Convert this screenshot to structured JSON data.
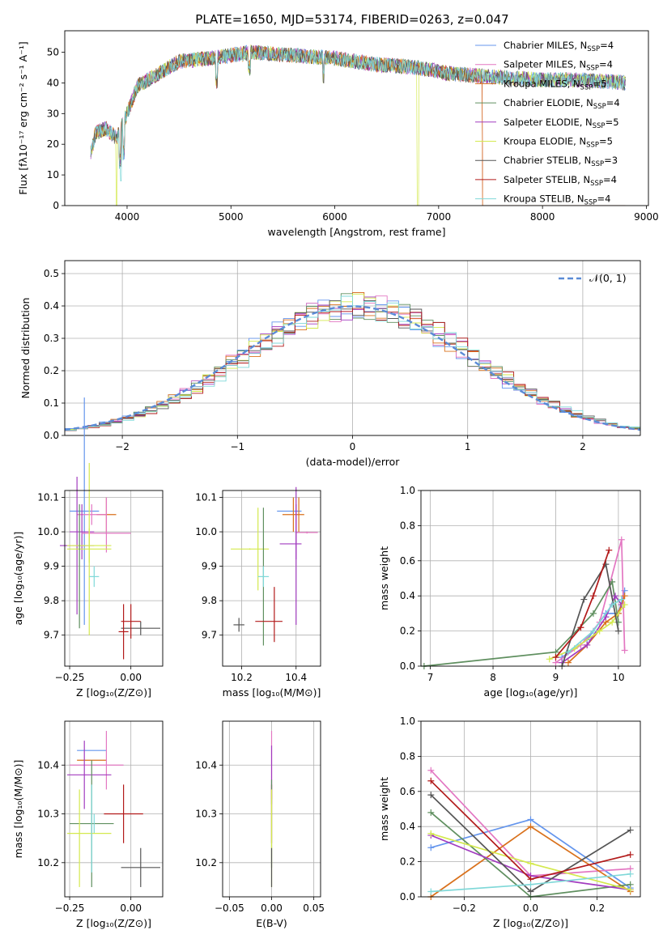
{
  "figure": {
    "title": "PLATE=1650, MJD=53174, FIBERID=0263, z=0.047"
  },
  "colors": [
    "#6495ed",
    "#e377c2",
    "#d9711c",
    "#5f8f5f",
    "#a23cbf",
    "#d4e94e",
    "#555555",
    "#b21a1a",
    "#7fd8d8"
  ],
  "chart_data": [
    {
      "id": "spectrum",
      "type": "line",
      "xlabel": "wavelength [Angstrom, rest frame]",
      "ylabel": "Flux [fλ10⁻¹⁷ erg cm⁻² s⁻¹ A⁻¹]",
      "xlim": [
        3400,
        9020
      ],
      "ylim": [
        0,
        57
      ],
      "xticks": [
        4000,
        5000,
        6000,
        7000,
        8000,
        9000
      ],
      "yticks": [
        0,
        10,
        20,
        30,
        40,
        50
      ],
      "grid": false,
      "legend_placement": "upper right",
      "data_range": [
        3650,
        8800
      ],
      "continuum": {
        "x": [
          3650,
          3700,
          3800,
          3900,
          4000,
          4100,
          4300,
          4500,
          4800,
          5200,
          5600,
          6000,
          6400,
          6800,
          7100,
          7500,
          8000,
          8400,
          8800
        ],
        "y": [
          17,
          24,
          25,
          22,
          30,
          39,
          43,
          47,
          48,
          50,
          49,
          48,
          46,
          45,
          43,
          42,
          41,
          41,
          40
        ]
      },
      "series": [
        {
          "name": "Chabrier MILES, N",
          "sub": "SSP",
          "suffix": "=4"
        },
        {
          "name": "Salpeter MILES, N",
          "sub": "SSP",
          "suffix": "=4"
        },
        {
          "name": "Kroupa MILES, N",
          "sub": "SSP",
          "suffix": "=5"
        },
        {
          "name": "Chabrier ELODIE, N",
          "sub": "SSP",
          "suffix": "=4"
        },
        {
          "name": "Salpeter ELODIE, N",
          "sub": "SSP",
          "suffix": "=5"
        },
        {
          "name": "Kroupa ELODIE, N",
          "sub": "SSP",
          "suffix": "=5"
        },
        {
          "name": "Chabrier STELIB, N",
          "sub": "SSP",
          "suffix": "=3"
        },
        {
          "name": "Salpeter STELIB, N",
          "sub": "SSP",
          "suffix": "=4"
        },
        {
          "name": "Kroupa STELIB, N",
          "sub": "SSP",
          "suffix": "=4"
        }
      ]
    },
    {
      "id": "residuals",
      "type": "histogram",
      "xlabel": "(data-model)/error",
      "ylabel": "Normed distribution",
      "xlim": [
        -2.5,
        2.5
      ],
      "ylim": [
        0,
        0.54
      ],
      "xticks": [
        -2,
        -1,
        0,
        1,
        2
      ],
      "yticks": [
        0.0,
        0.1,
        0.2,
        0.3,
        0.4,
        0.5
      ],
      "grid": true,
      "legend_placement": "upper right",
      "reference": {
        "label": "𝒩(0, 1)",
        "mean": 0,
        "sigma": 1
      },
      "bin_width": 0.1
    },
    {
      "id": "age_vs_Z",
      "type": "errorbar",
      "xlabel": "Z [log₁₀(Z/Z⊙)]",
      "ylabel": "age  [log₁₀(age/yr)]",
      "xlim": [
        -0.27,
        0.13
      ],
      "ylim": [
        9.61,
        10.12
      ],
      "xticks": [
        -0.25,
        0.0
      ],
      "yticks": [
        9.7,
        9.8,
        9.9,
        10.0,
        10.1
      ],
      "grid": true,
      "points": [
        {
          "x": -0.19,
          "xerr": 0.06,
          "y": 10.06,
          "yerr": 0.33
        },
        {
          "x": -0.1,
          "xerr": 0.04,
          "y": 10.05,
          "yerr": 0.05
        },
        {
          "x": -0.16,
          "xerr": 0.06,
          "y": 10.05,
          "yerr": 0.03
        },
        {
          "x": -0.2,
          "xerr": 0.05,
          "y": 10.0,
          "yerr": 0.08
        },
        {
          "x": -0.1,
          "xerr": 0.0,
          "y": 10.02,
          "yerr": 0.08
        },
        {
          "x": -0.22,
          "xerr": 0.07,
          "y": 9.96,
          "yerr": 0.2
        },
        {
          "x": -0.1,
          "xerr": 0.1,
          "y": 9.996,
          "yerr": 0.003
        },
        {
          "x": -0.17,
          "xerr": 0.09,
          "y": 9.96,
          "yerr": 0.05
        },
        {
          "x": -0.17,
          "xerr": 0.09,
          "y": 9.95,
          "yerr": 0.25
        },
        {
          "x": -0.15,
          "xerr": 0.02,
          "y": 9.87,
          "yerr": 0.03
        },
        {
          "x": 0.04,
          "xerr": 0.08,
          "y": 9.72,
          "yerr": 0.02
        },
        {
          "x": 0.0,
          "xerr": 0.04,
          "y": 9.74,
          "yerr": 0.05
        },
        {
          "x": -0.03,
          "xerr": 0.02,
          "y": 9.71,
          "yerr": 0.08
        },
        {
          "x": -0.21,
          "xerr": 0.0,
          "y": 9.9,
          "yerr": 0.18
        }
      ],
      "point_colors": [
        0,
        2,
        1,
        4,
        1,
        4,
        1,
        5,
        5,
        8,
        6,
        7,
        7,
        3
      ]
    },
    {
      "id": "age_vs_mass",
      "type": "errorbar",
      "xlabel": "mass [log₁₀(M/M⊙)]",
      "ylabel": "",
      "xlim": [
        10.13,
        10.49
      ],
      "ylim": [
        9.61,
        10.12
      ],
      "xticks": [
        10.2,
        10.4
      ],
      "yticks": [
        9.7,
        9.8,
        9.9,
        10.0,
        10.1
      ],
      "grid": true,
      "points": [
        {
          "x": 10.375,
          "xerr": 0.045,
          "y": 10.06,
          "yerr": 0.0
        },
        {
          "x": 10.39,
          "xerr": 0.04,
          "y": 10.05,
          "yerr": 0.05
        },
        {
          "x": 10.41,
          "xerr": 0.0,
          "y": 10.05,
          "yerr": 0.05
        },
        {
          "x": 10.4,
          "xerr": 0.0,
          "y": 10.0,
          "yerr": 0.08
        },
        {
          "x": 10.44,
          "xerr": 0.04,
          "y": 9.998,
          "yerr": 0.003
        },
        {
          "x": 10.38,
          "xerr": 0.04,
          "y": 9.965,
          "yerr": 0.0
        },
        {
          "x": 10.4,
          "xerr": 0.0,
          "y": 9.93,
          "yerr": 0.2
        },
        {
          "x": 10.23,
          "xerr": 0.07,
          "y": 9.95,
          "yerr": 0.002
        },
        {
          "x": 10.26,
          "xerr": 0.0,
          "y": 9.95,
          "yerr": 0.12
        },
        {
          "x": 10.28,
          "xerr": 0.0,
          "y": 9.87,
          "yerr": 0.2
        },
        {
          "x": 10.28,
          "xerr": 0.02,
          "y": 9.87,
          "yerr": 0.03
        },
        {
          "x": 10.19,
          "xerr": 0.02,
          "y": 9.73,
          "yerr": 0.02
        },
        {
          "x": 10.3,
          "xerr": 0.05,
          "y": 9.74,
          "yerr": 0.0
        },
        {
          "x": 10.32,
          "xerr": 0.0,
          "y": 9.76,
          "yerr": 0.08
        }
      ],
      "point_colors": [
        0,
        2,
        2,
        4,
        1,
        4,
        4,
        5,
        5,
        3,
        8,
        6,
        7,
        7
      ]
    },
    {
      "id": "weight_vs_age",
      "type": "line",
      "xlabel": "age  [log₁₀(age/yr)]",
      "ylabel": "mass weight",
      "xlim": [
        6.85,
        10.35
      ],
      "ylim": [
        0,
        1
      ],
      "xticks": [
        7,
        8,
        9,
        10
      ],
      "yticks": [
        0.0,
        0.2,
        0.4,
        0.6,
        0.8,
        1.0
      ],
      "grid": true,
      "series": [
        {
          "x": [
            9.1,
            9.5,
            9.8,
            10.0,
            10.1
          ],
          "y": [
            0.05,
            0.15,
            0.3,
            0.3,
            0.43
          ]
        },
        {
          "x": [
            9.0,
            9.4,
            9.7,
            10.05,
            10.1
          ],
          "y": [
            0.02,
            0.12,
            0.25,
            0.72,
            0.09
          ]
        },
        {
          "x": [
            9.2,
            9.5,
            9.8,
            10.0,
            10.1
          ],
          "y": [
            0.02,
            0.12,
            0.25,
            0.3,
            0.4
          ]
        },
        {
          "x": [
            6.9,
            9.0,
            9.6,
            9.9,
            10.0
          ],
          "y": [
            0.0,
            0.08,
            0.3,
            0.48,
            0.25
          ]
        },
        {
          "x": [
            9.1,
            9.5,
            9.8,
            9.95,
            10.05
          ],
          "y": [
            0.02,
            0.12,
            0.28,
            0.4,
            0.35
          ]
        },
        {
          "x": [
            8.9,
            9.3,
            9.7,
            9.9,
            10.1
          ],
          "y": [
            0.04,
            0.1,
            0.2,
            0.25,
            0.35
          ]
        },
        {
          "x": [
            9.1,
            9.45,
            9.8,
            10.0
          ],
          "y": [
            0.0,
            0.38,
            0.58,
            0.2
          ]
        },
        {
          "x": [
            9.0,
            9.4,
            9.6,
            9.85
          ],
          "y": [
            0.05,
            0.22,
            0.4,
            0.66
          ]
        },
        {
          "x": [
            9.2,
            9.6,
            9.9,
            10.05
          ],
          "y": [
            0.08,
            0.2,
            0.35,
            0.38
          ]
        }
      ]
    },
    {
      "id": "mass_vs_Z",
      "type": "errorbar",
      "xlabel": "Z [log₁₀(Z/Z⊙)]",
      "ylabel": "mass [log₁₀(M/M⊙)]",
      "xlim": [
        -0.27,
        0.13
      ],
      "ylim": [
        10.13,
        10.49
      ],
      "xticks": [
        -0.25,
        0.0
      ],
      "yticks": [
        10.2,
        10.3,
        10.4
      ],
      "grid": true,
      "points": [
        {
          "x": -0.16,
          "xerr": 0.06,
          "y": 10.43,
          "yerr": 0.0
        },
        {
          "x": -0.16,
          "xerr": 0.06,
          "y": 10.41,
          "yerr": 0.0
        },
        {
          "x": -0.1,
          "xerr": 0.0,
          "y": 10.41,
          "yerr": 0.06
        },
        {
          "x": -0.14,
          "xerr": 0.11,
          "y": 10.4,
          "yerr": 0.0
        },
        {
          "x": -0.19,
          "xerr": 0.0,
          "y": 10.38,
          "yerr": 0.07
        },
        {
          "x": -0.17,
          "xerr": 0.09,
          "y": 10.38,
          "yerr": 0.0
        },
        {
          "x": -0.16,
          "xerr": 0.09,
          "y": 10.28,
          "yerr": 0.13
        },
        {
          "x": -0.15,
          "xerr": 0.0,
          "y": 10.28,
          "yerr": 0.02
        },
        {
          "x": -0.21,
          "xerr": 0.0,
          "y": 10.25,
          "yerr": 0.1
        },
        {
          "x": -0.17,
          "xerr": 0.09,
          "y": 10.26,
          "yerr": 0.0
        },
        {
          "x": -0.16,
          "xerr": 0.0,
          "y": 10.27,
          "yerr": 0.09
        },
        {
          "x": -0.03,
          "xerr": 0.08,
          "y": 10.3,
          "yerr": 0.0
        },
        {
          "x": -0.03,
          "xerr": 0.0,
          "y": 10.3,
          "yerr": 0.06
        },
        {
          "x": 0.04,
          "xerr": 0.08,
          "y": 10.19,
          "yerr": 0.04
        }
      ],
      "point_colors": [
        0,
        2,
        1,
        1,
        4,
        4,
        3,
        8,
        5,
        5,
        8,
        7,
        7,
        6
      ]
    },
    {
      "id": "mass_vs_ebv",
      "type": "errorbar",
      "xlabel": "E(B-V)",
      "ylabel": "",
      "xlim": [
        -0.058,
        0.058
      ],
      "ylim": [
        10.13,
        10.49
      ],
      "xticks": [
        -0.05,
        0.0,
        0.05
      ],
      "yticks": [
        10.2,
        10.3,
        10.4
      ],
      "grid": true,
      "points": [
        {
          "x": 0.0,
          "xerr": 0.0,
          "y": 10.4,
          "yerr": 0.07
        },
        {
          "x": 0.0,
          "xerr": 0.0,
          "y": 10.38,
          "yerr": 0.06
        },
        {
          "x": 0.0,
          "xerr": 0.0,
          "y": 10.3,
          "yerr": 0.06
        },
        {
          "x": 0.0,
          "xerr": 0.0,
          "y": 10.28,
          "yerr": 0.09
        },
        {
          "x": 0.0,
          "xerr": 0.0,
          "y": 10.25,
          "yerr": 0.1
        },
        {
          "x": 0.0,
          "xerr": 0.0,
          "y": 10.19,
          "yerr": 0.04
        }
      ],
      "point_colors": [
        1,
        4,
        7,
        3,
        5,
        6
      ]
    },
    {
      "id": "weight_vs_Z",
      "type": "line",
      "xlabel": "Z [log₁₀(Z/Z⊙)]",
      "ylabel": "mass weight",
      "xlim": [
        -0.33,
        0.33
      ],
      "ylim": [
        0,
        1
      ],
      "xticks": [
        -0.2,
        0.0,
        0.2
      ],
      "yticks": [
        0.0,
        0.2,
        0.4,
        0.6,
        0.8,
        1.0
      ],
      "grid": true,
      "series": [
        {
          "x": [
            -0.3,
            0.0,
            0.3
          ],
          "y": [
            0.28,
            0.44,
            0.05
          ]
        },
        {
          "x": [
            -0.3,
            0.0,
            0.3
          ],
          "y": [
            0.72,
            0.12,
            0.16
          ]
        },
        {
          "x": [
            -0.3,
            0.0,
            0.3
          ],
          "y": [
            0.0,
            0.4,
            0.03
          ]
        },
        {
          "x": [
            -0.3,
            0.0,
            0.3
          ],
          "y": [
            0.48,
            0.0,
            0.07
          ]
        },
        {
          "x": [
            -0.3,
            0.0,
            0.3
          ],
          "y": [
            0.35,
            0.12,
            0.04
          ]
        },
        {
          "x": [
            -0.3,
            0.0,
            0.3
          ],
          "y": [
            0.36,
            0.19,
            0.04
          ]
        },
        {
          "x": [
            -0.3,
            0.0,
            0.3
          ],
          "y": [
            0.58,
            0.03,
            0.38
          ]
        },
        {
          "x": [
            -0.3,
            0.0,
            0.3
          ],
          "y": [
            0.66,
            0.1,
            0.24
          ]
        },
        {
          "x": [
            -0.3,
            0.0,
            0.3
          ],
          "y": [
            0.03,
            0.07,
            0.13
          ]
        }
      ]
    }
  ]
}
